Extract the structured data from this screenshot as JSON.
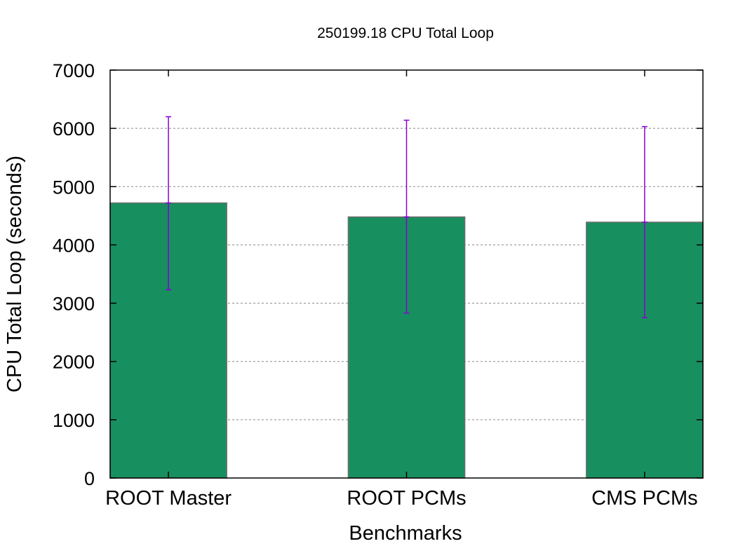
{
  "chart_data": {
    "type": "bar",
    "title": "250199.18 CPU Total Loop",
    "xlabel": "Benchmarks",
    "ylabel": "CPU Total Loop (seconds)",
    "categories": [
      "ROOT Master",
      "ROOT PCMs",
      "CMS PCMs"
    ],
    "values": [
      4720,
      4480,
      4390
    ],
    "error_low": [
      3230,
      2830,
      2750
    ],
    "error_high": [
      6200,
      6140,
      6030
    ],
    "ylim": [
      0,
      7000
    ],
    "yticks": [
      0,
      1000,
      2000,
      3000,
      4000,
      5000,
      6000,
      7000
    ],
    "grid": true,
    "legend": "none",
    "colors": {
      "bar_fill": "#188f5f",
      "bar_stroke": "#6e6e6e",
      "error_bar": "#8a00d4",
      "grid": "#8a8a8a"
    }
  }
}
